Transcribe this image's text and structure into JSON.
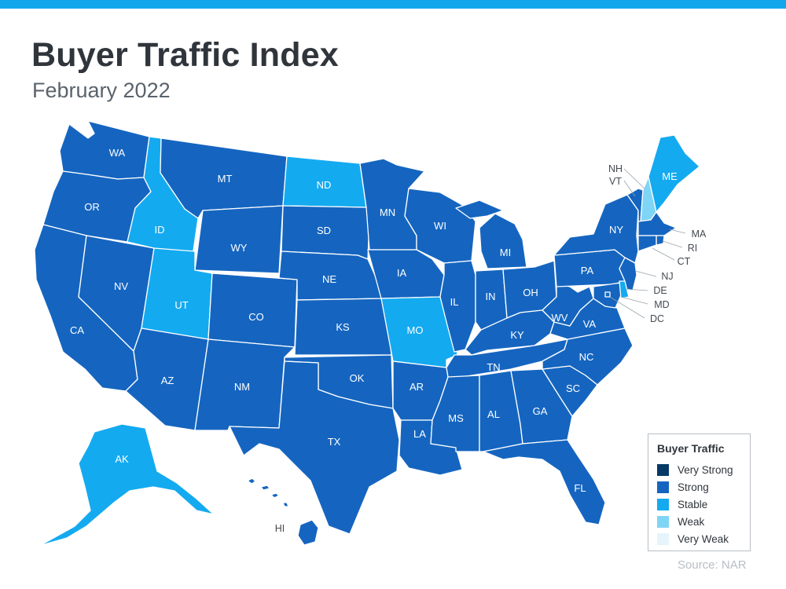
{
  "header": {
    "title": "Buyer Traffic Index",
    "subtitle": "February 2022"
  },
  "legend": {
    "title": "Buyer Traffic",
    "items": [
      {
        "label": "Very Strong",
        "color": "#053a66"
      },
      {
        "label": "Strong",
        "color": "#1565c0"
      },
      {
        "label": "Stable",
        "color": "#14aaf0"
      },
      {
        "label": "Weak",
        "color": "#7fd5f5"
      },
      {
        "label": "Very Weak",
        "color": "#e6f4fc"
      }
    ]
  },
  "states": {
    "WA": "Strong",
    "OR": "Strong",
    "CA": "Strong",
    "NV": "Strong",
    "ID": "Stable",
    "MT": "Strong",
    "WY": "Strong",
    "UT": "Stable",
    "AZ": "Strong",
    "CO": "Strong",
    "NM": "Strong",
    "ND": "Stable",
    "SD": "Strong",
    "NE": "Strong",
    "KS": "Strong",
    "OK": "Strong",
    "TX": "Strong",
    "MN": "Strong",
    "IA": "Strong",
    "MO": "Stable",
    "AR": "Strong",
    "LA": "Strong",
    "WI": "Strong",
    "IL": "Strong",
    "MI": "Strong",
    "IN": "Strong",
    "OH": "Strong",
    "KY": "Strong",
    "TN": "Strong",
    "MS": "Strong",
    "AL": "Strong",
    "GA": "Strong",
    "FL": "Strong",
    "SC": "Strong",
    "NC": "Strong",
    "VA": "Strong",
    "WV": "Strong",
    "PA": "Strong",
    "NY": "Strong",
    "VT": "Strong",
    "NH": "Weak",
    "ME": "Stable",
    "MA": "Strong",
    "RI": "Strong",
    "CT": "Strong",
    "NJ": "Strong",
    "DE": "Stable",
    "MD": "Strong",
    "DC": "Strong",
    "AK": "Stable",
    "HI": "Strong"
  },
  "source": "Source: NAR"
}
